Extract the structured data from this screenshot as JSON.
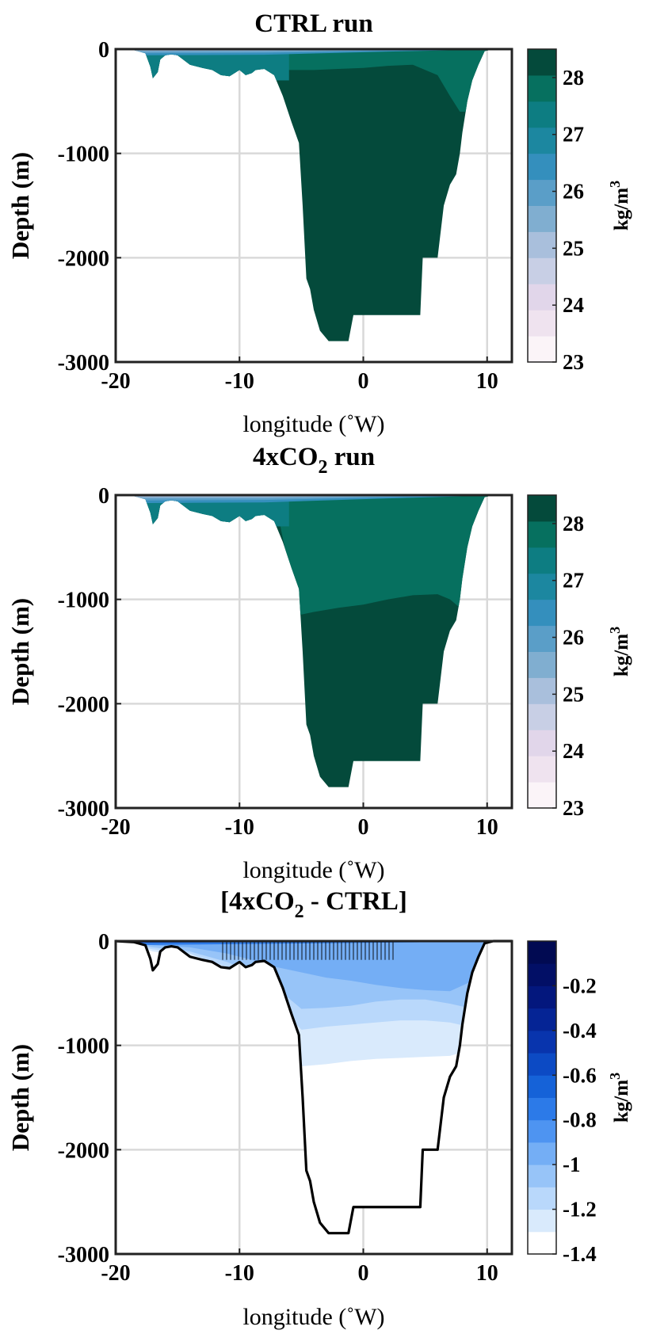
{
  "chart_data": [
    {
      "type": "area",
      "panel": "ctrl",
      "title": "CTRL run",
      "xlabel": "longitude (˚W)",
      "ylabel": "Depth (m)",
      "xlim": [
        -20,
        12
      ],
      "ylim": [
        -3000,
        0
      ],
      "xticks": [
        "-20",
        "-10",
        "0",
        "10"
      ],
      "yticks": [
        "0",
        "-1000",
        "-2000",
        "-3000"
      ],
      "grid": true,
      "colorbar": {
        "label": "kg/m",
        "label_sup": "3",
        "ticks": [
          "23",
          "24",
          "25",
          "26",
          "27",
          "28"
        ],
        "range": [
          23,
          28.5
        ],
        "colors": [
          "#fbf4f8",
          "#efe3ef",
          "#e1d6ea",
          "#c8cfe5",
          "#a9bfdc",
          "#80aed0",
          "#5a9ec8",
          "#348fbd",
          "#1c87a0",
          "#0d7d82",
          "#06705f",
          "#044a3b"
        ]
      },
      "bathymetry_depth": {
        "lon": [
          -20,
          -18.5,
          -17.6,
          -17.2,
          -17.0,
          -16.6,
          -16.4,
          -16.0,
          -15.5,
          -15.0,
          -14.0,
          -13.0,
          -12.2,
          -11.5,
          -10.8,
          -10.0,
          -9.5,
          -9.0,
          -8.7,
          -8.0,
          -7.2,
          -6.5,
          -5.8,
          -5.2,
          -4.9,
          -4.6,
          -4.3,
          -4.0,
          -3.5,
          -2.8,
          -2.5,
          -1.2,
          -0.8,
          0,
          2,
          4.6,
          4.8,
          6.0,
          6.5,
          7.0,
          7.5,
          7.8,
          8.0,
          8.4,
          8.8,
          9.3,
          9.8,
          10.5,
          12
        ],
        "depth": [
          0,
          -10,
          -40,
          -170,
          -280,
          -220,
          -100,
          -60,
          -50,
          -60,
          -150,
          -180,
          -200,
          -250,
          -260,
          -200,
          -250,
          -230,
          -200,
          -190,
          -250,
          -450,
          -700,
          -900,
          -1500,
          -2200,
          -2300,
          -2500,
          -2700,
          -2800,
          -2800,
          -2800,
          -2550,
          -2550,
          -2550,
          -2550,
          -2000,
          -2000,
          -1500,
          -1300,
          -1200,
          -1000,
          -800,
          -500,
          -300,
          -150,
          -20,
          0,
          0
        ]
      },
      "dense_water": {
        "threshold": 28.0,
        "isopycnal_28_depth": {
          "lon": [
            -6.5,
            -4.0,
            -2.0,
            0,
            2,
            4,
            6,
            7,
            7.8
          ],
          "depth": [
            -200,
            -200,
            -190,
            -180,
            -160,
            -150,
            -250,
            -450,
            -600
          ]
        }
      }
    },
    {
      "type": "area",
      "panel": "4xco2",
      "title": "4xCO",
      "title_sub": "2",
      "title_suffix": " run",
      "xlabel": "longitude (˚W)",
      "ylabel": "Depth (m)",
      "xlim": [
        -20,
        12
      ],
      "ylim": [
        -3000,
        0
      ],
      "xticks": [
        "-20",
        "-10",
        "0",
        "10"
      ],
      "yticks": [
        "0",
        "-1000",
        "-2000",
        "-3000"
      ],
      "grid": true,
      "colorbar": {
        "label": "kg/m",
        "label_sup": "3",
        "ticks": [
          "23",
          "24",
          "25",
          "26",
          "27",
          "28"
        ],
        "range": [
          23,
          28.5
        ],
        "colors": [
          "#fbf4f8",
          "#efe3ef",
          "#e1d6ea",
          "#c8cfe5",
          "#a9bfdc",
          "#80aed0",
          "#5a9ec8",
          "#348fbd",
          "#1c87a0",
          "#0d7d82",
          "#06705f",
          "#044a3b"
        ]
      },
      "dense_water": {
        "threshold": 28.0,
        "isopycnal_28_depth": {
          "lon": [
            -5.2,
            -4.0,
            -2.0,
            0,
            2,
            4,
            6,
            7,
            8.0
          ],
          "depth": [
            -1150,
            -1120,
            -1080,
            -1050,
            -1000,
            -960,
            -950,
            -1000,
            -1100
          ]
        }
      }
    },
    {
      "type": "area",
      "panel": "difference",
      "title": "[4xCO",
      "title_sub": "2",
      "title_suffix": " - CTRL]",
      "xlabel": "longitude (˚W)",
      "ylabel": "Depth (m)",
      "xlim": [
        -20,
        12
      ],
      "ylim": [
        -3000,
        0
      ],
      "xticks": [
        "-20",
        "-10",
        "0",
        "10"
      ],
      "yticks": [
        "0",
        "-1000",
        "-2000",
        "-3000"
      ],
      "grid": true,
      "colorbar": {
        "label": "kg/m",
        "label_sup": "3",
        "ticks": [
          "-0.2",
          "-0.4",
          "-0.6",
          "-0.8",
          "-1",
          "-1.2",
          "-1.4"
        ],
        "range": [
          -1.4,
          0
        ],
        "colors": [
          "#ffffff",
          "#d9eafc",
          "#b9d8fb",
          "#97c4f8",
          "#74aef5",
          "#4e94f1",
          "#2c7ae8",
          "#1562d8",
          "#0c4ac4",
          "#0834ad",
          "#052495",
          "#03177d",
          "#020f66",
          "#010a52"
        ]
      },
      "anomaly_bands_depth": {
        "lon": [
          -17.0,
          -14.0,
          -11.0,
          -9.0,
          -7.0,
          -5.0,
          -3.0,
          -1.0,
          1.0,
          3.0,
          5.0,
          7.0,
          8.5
        ],
        "minus_0_1": [
          -100,
          -150,
          -300,
          -500,
          -900,
          -1200,
          -1180,
          -1150,
          -1130,
          -1120,
          -1110,
          -1100,
          -1050
        ],
        "minus_0_2": [
          -80,
          -120,
          -250,
          -400,
          -600,
          -850,
          -820,
          -800,
          -780,
          -760,
          -760,
          -780,
          -820
        ],
        "minus_0_3": [
          -60,
          -100,
          -200,
          -300,
          -450,
          -650,
          -640,
          -620,
          -580,
          -560,
          -560,
          -600,
          -640
        ],
        "minus_0_4": [
          -40,
          -60,
          -120,
          -180,
          -250,
          -300,
          -350,
          -380,
          -420,
          -450,
          -470,
          -480,
          -400
        ]
      }
    }
  ]
}
